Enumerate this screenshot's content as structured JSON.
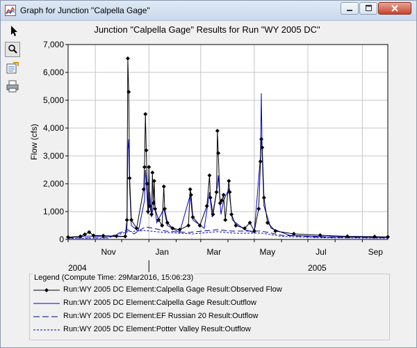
{
  "window": {
    "title": "Graph for Junction \"Calpella Gage\"",
    "icons": [
      "app-chart-icon",
      "minimize-icon",
      "maximize-icon",
      "close-icon"
    ]
  },
  "toolbar": {
    "tools": [
      {
        "name": "pointer-icon",
        "selected": false
      },
      {
        "name": "zoom-icon",
        "selected": true
      },
      {
        "name": "properties-icon",
        "selected": false
      },
      {
        "name": "print-icon",
        "selected": false
      }
    ]
  },
  "chart_data": {
    "type": "line",
    "title": "Junction \"Calpella Gage\" Results for Run \"WY 2005 DC\"",
    "ylabel": "Flow (cfs)",
    "xlabel": "",
    "ylim": [
      0,
      7000
    ],
    "yticks": [
      "0",
      "1,000",
      "2,000",
      "3,000",
      "4,000",
      "5,000",
      "6,000",
      "7,000"
    ],
    "xlim": [
      "2004-10-01",
      "2005-09-30"
    ],
    "x_month_ticks": [
      "Nov",
      "Jan",
      "Mar",
      "May",
      "Jul",
      "Sep"
    ],
    "x_year_labels": [
      {
        "label": "2004",
        "at": "2004-10-01"
      },
      {
        "label": "2005",
        "at": "2005-07-01"
      }
    ],
    "grid": true,
    "series": [
      {
        "name": "Run:WY 2005 DC Element:Calpella Gage Result:Observed Flow",
        "color": "#000000",
        "style": "solid-with-diamonds",
        "points": [
          [
            "2004-10-01",
            80
          ],
          [
            "2004-10-15",
            110
          ],
          [
            "2004-10-20",
            180
          ],
          [
            "2004-10-25",
            260
          ],
          [
            "2004-10-30",
            140
          ],
          [
            "2004-11-10",
            130
          ],
          [
            "2004-11-25",
            120
          ],
          [
            "2004-12-05",
            110
          ],
          [
            "2004-12-07",
            700
          ],
          [
            "2004-12-08",
            6500
          ],
          [
            "2004-12-09",
            5300
          ],
          [
            "2004-12-10",
            2200
          ],
          [
            "2004-12-12",
            700
          ],
          [
            "2004-12-18",
            400
          ],
          [
            "2004-12-26",
            1800
          ],
          [
            "2004-12-27",
            2600
          ],
          [
            "2004-12-28",
            4500
          ],
          [
            "2004-12-29",
            3200
          ],
          [
            "2004-12-30",
            2000
          ],
          [
            "2004-12-31",
            1000
          ],
          [
            "2005-01-01",
            2600
          ],
          [
            "2005-01-02",
            1200
          ],
          [
            "2005-01-04",
            900
          ],
          [
            "2005-01-05",
            2400
          ],
          [
            "2005-01-06",
            1300
          ],
          [
            "2005-01-07",
            2100
          ],
          [
            "2005-01-08",
            1100
          ],
          [
            "2005-01-12",
            700
          ],
          [
            "2005-01-16",
            500
          ],
          [
            "2005-01-18",
            1900
          ],
          [
            "2005-01-19",
            1100
          ],
          [
            "2005-01-22",
            600
          ],
          [
            "2005-01-28",
            400
          ],
          [
            "2005-02-05",
            350
          ],
          [
            "2005-02-15",
            500
          ],
          [
            "2005-02-17",
            1800
          ],
          [
            "2005-02-18",
            1600
          ],
          [
            "2005-02-20",
            800
          ],
          [
            "2005-02-28",
            500
          ],
          [
            "2005-03-08",
            1200
          ],
          [
            "2005-03-11",
            2300
          ],
          [
            "2005-03-12",
            1500
          ],
          [
            "2005-03-15",
            900
          ],
          [
            "2005-03-19",
            1700
          ],
          [
            "2005-03-20",
            3900
          ],
          [
            "2005-03-21",
            3100
          ],
          [
            "2005-03-23",
            1300
          ],
          [
            "2005-03-25",
            1400
          ],
          [
            "2005-03-27",
            1600
          ],
          [
            "2005-03-29",
            700
          ],
          [
            "2005-04-02",
            2100
          ],
          [
            "2005-04-03",
            1700
          ],
          [
            "2005-04-05",
            900
          ],
          [
            "2005-04-10",
            500
          ],
          [
            "2005-04-20",
            400
          ],
          [
            "2005-04-26",
            600
          ],
          [
            "2005-05-01",
            300
          ],
          [
            "2005-05-06",
            1100
          ],
          [
            "2005-05-08",
            2800
          ],
          [
            "2005-05-09",
            3600
          ],
          [
            "2005-05-10",
            3300
          ],
          [
            "2005-05-12",
            1500
          ],
          [
            "2005-05-16",
            600
          ],
          [
            "2005-05-25",
            300
          ],
          [
            "2005-06-15",
            200
          ],
          [
            "2005-07-15",
            150
          ],
          [
            "2005-08-15",
            110
          ],
          [
            "2005-09-15",
            100
          ],
          [
            "2005-09-30",
            90
          ]
        ]
      },
      {
        "name": "Run:WY 2005 DC Element:Calpella Gage Result:Outflow",
        "color": "#0000cc",
        "style": "solid",
        "points": [
          [
            "2004-10-01",
            60
          ],
          [
            "2004-10-20",
            120
          ],
          [
            "2004-11-10",
            110
          ],
          [
            "2004-12-05",
            100
          ],
          [
            "2004-12-07",
            400
          ],
          [
            "2004-12-08",
            3200
          ],
          [
            "2004-12-09",
            3600
          ],
          [
            "2004-12-10",
            1900
          ],
          [
            "2004-12-12",
            500
          ],
          [
            "2004-12-20",
            300
          ],
          [
            "2004-12-27",
            1400
          ],
          [
            "2004-12-28",
            2500
          ],
          [
            "2004-12-29",
            2100
          ],
          [
            "2004-12-31",
            900
          ],
          [
            "2005-01-02",
            1700
          ],
          [
            "2005-01-04",
            800
          ],
          [
            "2005-01-07",
            1400
          ],
          [
            "2005-01-10",
            600
          ],
          [
            "2005-01-18",
            1100
          ],
          [
            "2005-01-22",
            500
          ],
          [
            "2005-02-05",
            250
          ],
          [
            "2005-02-17",
            1600
          ],
          [
            "2005-02-20",
            700
          ],
          [
            "2005-03-05",
            400
          ],
          [
            "2005-03-11",
            1700
          ],
          [
            "2005-03-14",
            800
          ],
          [
            "2005-03-20",
            1900
          ],
          [
            "2005-03-21",
            2300
          ],
          [
            "2005-03-24",
            900
          ],
          [
            "2005-03-27",
            1400
          ],
          [
            "2005-04-02",
            1800
          ],
          [
            "2005-04-06",
            700
          ],
          [
            "2005-04-20",
            350
          ],
          [
            "2005-05-01",
            250
          ],
          [
            "2005-05-08",
            3000
          ],
          [
            "2005-05-09",
            5250
          ],
          [
            "2005-05-10",
            3000
          ],
          [
            "2005-05-12",
            1200
          ],
          [
            "2005-05-20",
            400
          ],
          [
            "2005-06-10",
            150
          ],
          [
            "2005-07-20",
            100
          ],
          [
            "2005-09-30",
            70
          ]
        ]
      },
      {
        "name": "Run:WY 2005 DC Element:EF Russian 20 Result:Outflow",
        "color": "#00008b",
        "style": "long-dash",
        "points": [
          [
            "2004-10-01",
            50
          ],
          [
            "2004-11-15",
            60
          ],
          [
            "2004-12-08",
            350
          ],
          [
            "2004-12-15",
            200
          ],
          [
            "2004-12-28",
            450
          ],
          [
            "2005-01-06",
            400
          ],
          [
            "2005-01-20",
            300
          ],
          [
            "2005-02-15",
            250
          ],
          [
            "2005-03-20",
            350
          ],
          [
            "2005-04-05",
            300
          ],
          [
            "2005-05-09",
            300
          ],
          [
            "2005-06-01",
            150
          ],
          [
            "2005-07-15",
            80
          ],
          [
            "2005-09-30",
            60
          ]
        ]
      },
      {
        "name": "Run:WY 2005 DC Element:Potter Valley Result:Outflow",
        "color": "#0000cc",
        "style": "short-dash",
        "points": [
          [
            "2004-10-01",
            40
          ],
          [
            "2004-11-15",
            50
          ],
          [
            "2004-12-08",
            280
          ],
          [
            "2004-12-28",
            320
          ],
          [
            "2005-01-18",
            250
          ],
          [
            "2005-02-20",
            200
          ],
          [
            "2005-03-20",
            280
          ],
          [
            "2005-04-10",
            220
          ],
          [
            "2005-05-09",
            230
          ],
          [
            "2005-06-01",
            110
          ],
          [
            "2005-07-15",
            60
          ],
          [
            "2005-09-30",
            45
          ]
        ]
      }
    ]
  },
  "legend": {
    "title": "Legend (Compute Time: 29Mar2016, 15:06:23)",
    "items": [
      {
        "label": "Run:WY 2005 DC Element:Calpella Gage Result:Observed Flow",
        "style": "solid-with-diamonds",
        "color": "#000000"
      },
      {
        "label": "Run:WY 2005 DC Element:Calpella Gage Result:Outflow",
        "style": "solid",
        "color": "#0000cc"
      },
      {
        "label": "Run:WY 2005 DC Element:EF Russian 20 Result:Outflow",
        "style": "long-dash",
        "color": "#00008b"
      },
      {
        "label": "Run:WY 2005 DC Element:Potter Valley Result:Outflow",
        "style": "short-dash",
        "color": "#0000cc"
      }
    ]
  }
}
